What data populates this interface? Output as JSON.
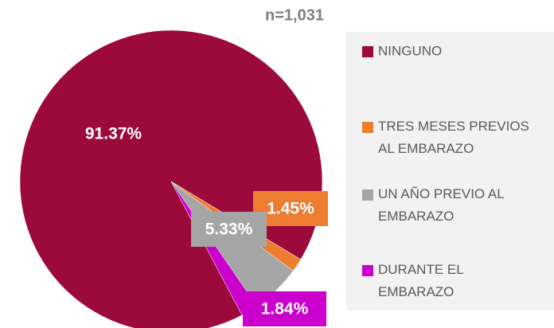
{
  "chart_data": {
    "type": "pie",
    "title": "n=1,031",
    "categories": [
      "NINGUNO",
      "TRES MESES PREVIOS AL EMBARAZO",
      "UN AÑO PREVIO AL EMBARAZO",
      "DURANTE EL EMBARAZO"
    ],
    "values": [
      91.37,
      1.45,
      5.33,
      1.84
    ],
    "value_labels": [
      "91.37%",
      "1.45%",
      "5.33%",
      "1.84%"
    ],
    "colors": [
      "#9b0a3a",
      "#ed7d31",
      "#a5a5a5",
      "#cc00cc"
    ],
    "legend": "right"
  }
}
